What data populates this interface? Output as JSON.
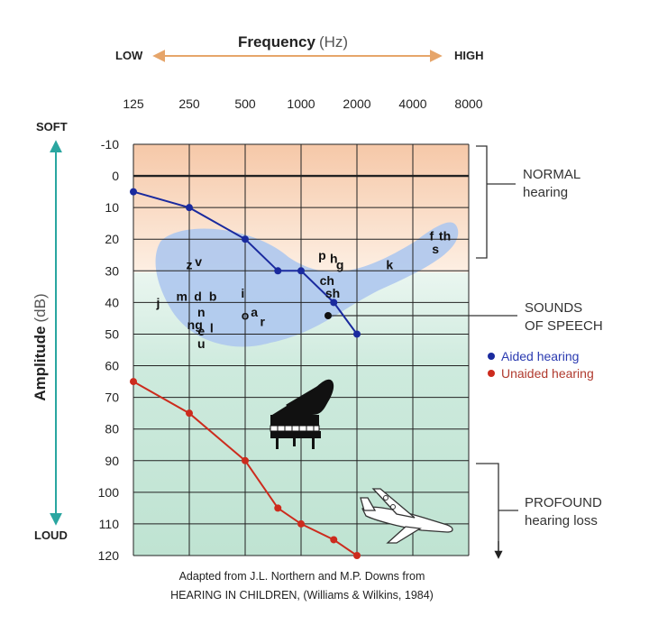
{
  "chart_data": {
    "type": "line",
    "title": "Frequency",
    "title_unit": "(Hz)",
    "freq_low_label": "LOW",
    "freq_high_label": "HIGH",
    "ylabel": "Amplitude",
    "ylabel_unit": "(dB)",
    "amp_soft_label": "SOFT",
    "amp_loud_label": "LOUD",
    "x_ticks": [
      "125",
      "250",
      "500",
      "1000",
      "2000",
      "4000",
      "8000"
    ],
    "y_ticks": [
      -10,
      0,
      10,
      20,
      30,
      40,
      50,
      60,
      70,
      80,
      90,
      100,
      110,
      120
    ],
    "ylim": [
      -10,
      120
    ],
    "y_inverted": true,
    "x_scale": "log2",
    "grid": true,
    "series": [
      {
        "name": "Aided hearing",
        "color": "#1a2a9e",
        "points": [
          [
            125,
            5
          ],
          [
            250,
            10
          ],
          [
            500,
            20
          ],
          [
            750,
            30
          ],
          [
            1000,
            30
          ],
          [
            1500,
            40
          ],
          [
            2000,
            50
          ]
        ]
      },
      {
        "name": "Unaided hearing",
        "color": "#cc2b1d",
        "points": [
          [
            125,
            65
          ],
          [
            250,
            75
          ],
          [
            500,
            90
          ],
          [
            750,
            105
          ],
          [
            1000,
            110
          ],
          [
            1500,
            115
          ],
          [
            2000,
            120
          ]
        ]
      }
    ],
    "legend": [
      {
        "label": "Aided hearing",
        "color": "#1a2a9e"
      },
      {
        "label": "Unaided hearing",
        "color": "#cc2b1d"
      }
    ],
    "annotations": {
      "normal": [
        "NORMAL",
        "hearing"
      ],
      "speech": [
        "SOUNDS",
        "OF SPEECH"
      ],
      "profound": [
        "PROFOUND",
        "hearing loss"
      ]
    },
    "phonemes": [
      {
        "text": "z",
        "freq": 250,
        "db": 28
      },
      {
        "text": "v",
        "freq": 280,
        "db": 27
      },
      {
        "text": "j",
        "freq": 170,
        "db": 40
      },
      {
        "text": "m",
        "freq": 228,
        "db": 38
      },
      {
        "text": "d",
        "freq": 278,
        "db": 38
      },
      {
        "text": "b",
        "freq": 335,
        "db": 38
      },
      {
        "text": "n",
        "freq": 290,
        "db": 43
      },
      {
        "text": "ng",
        "freq": 268,
        "db": 47
      },
      {
        "text": "e",
        "freq": 290,
        "db": 49
      },
      {
        "text": "l",
        "freq": 330,
        "db": 48
      },
      {
        "text": "u",
        "freq": 290,
        "db": 53
      },
      {
        "text": "i",
        "freq": 485,
        "db": 37
      },
      {
        "text": "o",
        "freq": 500,
        "db": 44
      },
      {
        "text": "a",
        "freq": 560,
        "db": 43
      },
      {
        "text": "r",
        "freq": 620,
        "db": 46
      },
      {
        "text": "p",
        "freq": 1300,
        "db": 25
      },
      {
        "text": "h",
        "freq": 1500,
        "db": 26
      },
      {
        "text": "g",
        "freq": 1620,
        "db": 28
      },
      {
        "text": "ch",
        "freq": 1380,
        "db": 33
      },
      {
        "text": "sh",
        "freq": 1480,
        "db": 37
      },
      {
        "text": "k",
        "freq": 3000,
        "db": 28
      },
      {
        "text": "f",
        "freq": 5050,
        "db": 19
      },
      {
        "text": "th",
        "freq": 5950,
        "db": 19
      },
      {
        "text": "s",
        "freq": 5300,
        "db": 23
      }
    ],
    "source": [
      "Adapted from J.L. Northern and M.P. Downs from",
      "HEARING IN CHILDREN, (Williams & Wilkins, 1984)"
    ],
    "colors": {
      "normal_band": "#f7d9c4",
      "chart_bg": "#cfeadf",
      "speech_banana": "#aec8ee",
      "grid": "#222222",
      "arrow_freq": "#e6a56a",
      "arrow_amp": "#2aa6a0"
    },
    "icons": [
      "piano-icon",
      "airplane-icon"
    ]
  }
}
